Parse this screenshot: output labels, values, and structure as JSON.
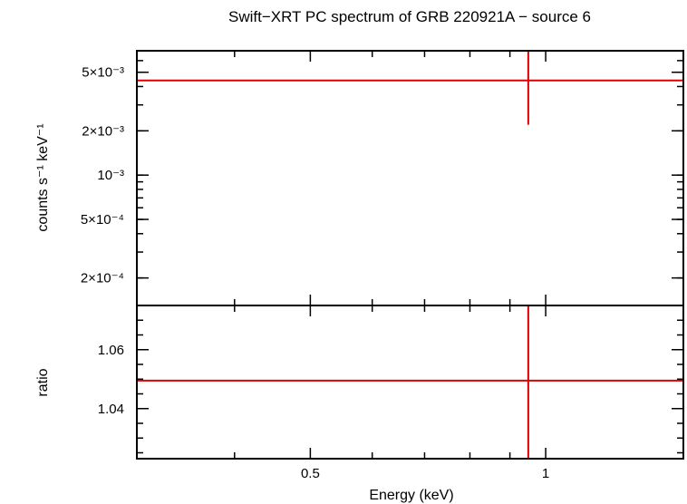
{
  "chart_data": [
    {
      "type": "line",
      "panel": "spectrum",
      "title": "Swift−XRT PC spectrum of GRB 220921A − source 6",
      "xlabel": "",
      "ylabel": "counts s⁻¹ keV⁻¹",
      "x_scale": "log",
      "y_scale": "log",
      "xlim": [
        0.3,
        1.5
      ],
      "ylim": [
        0.00013,
        0.007
      ],
      "yticks": [
        {
          "value": 0.005,
          "label": "5×10⁻³"
        },
        {
          "value": 0.002,
          "label": "2×10⁻³"
        },
        {
          "value": 0.001,
          "label": "10⁻³"
        },
        {
          "value": 0.0005,
          "label": "5×10⁻⁴"
        },
        {
          "value": 0.0002,
          "label": "2×10⁻⁴"
        }
      ],
      "series": [
        {
          "kind": "model",
          "color": "#dd0000",
          "x": [
            0.3,
            1.5
          ],
          "y": [
            0.0044,
            0.0044
          ]
        },
        {
          "kind": "data",
          "color": "#dd0000",
          "points": [
            {
              "x": 0.95,
              "y": 0.0044,
              "ylow": 0.0022,
              "yhigh": 0.007
            }
          ]
        }
      ]
    },
    {
      "type": "line",
      "panel": "ratio",
      "xlabel": "Energy (keV)",
      "ylabel": "ratio",
      "x_scale": "log",
      "y_scale": "linear",
      "xlim": [
        0.3,
        1.5
      ],
      "ylim": [
        1.023,
        1.075
      ],
      "xticks": [
        {
          "value": 0.5,
          "label": "0.5"
        },
        {
          "value": 1,
          "label": "1"
        }
      ],
      "yticks": [
        {
          "value": 1.06,
          "label": "1.06"
        },
        {
          "value": 1.04,
          "label": "1.04"
        }
      ],
      "series": [
        {
          "kind": "ratio",
          "color": "#dd0000",
          "x": [
            0.3,
            1.5
          ],
          "y": [
            1.0495,
            1.0495
          ]
        },
        {
          "kind": "data",
          "color": "#dd0000",
          "points": [
            {
              "x": 0.95,
              "y": 1.0495,
              "ylow": 1.023,
              "yhigh": 1.075
            }
          ]
        }
      ]
    }
  ]
}
